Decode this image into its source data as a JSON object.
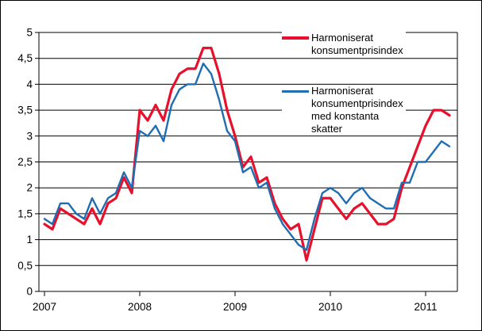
{
  "figure": {
    "background": "#ffffff",
    "border_color": "#000000",
    "axis_color": "#000000"
  },
  "chart_data": {
    "type": "line",
    "title": "",
    "x_unit": "month",
    "x": [
      "2007-01",
      "2007-02",
      "2007-03",
      "2007-04",
      "2007-05",
      "2007-06",
      "2007-07",
      "2007-08",
      "2007-09",
      "2007-10",
      "2007-11",
      "2007-12",
      "2008-01",
      "2008-02",
      "2008-03",
      "2008-04",
      "2008-05",
      "2008-06",
      "2008-07",
      "2008-08",
      "2008-09",
      "2008-10",
      "2008-11",
      "2008-12",
      "2009-01",
      "2009-02",
      "2009-03",
      "2009-04",
      "2009-05",
      "2009-06",
      "2009-07",
      "2009-08",
      "2009-09",
      "2009-10",
      "2009-11",
      "2009-12",
      "2010-01",
      "2010-02",
      "2010-03",
      "2010-04",
      "2010-05",
      "2010-06",
      "2010-07",
      "2010-08",
      "2010-09",
      "2010-10",
      "2010-11",
      "2010-12",
      "2011-01",
      "2011-02",
      "2011-03",
      "2011-04"
    ],
    "series": [
      {
        "name": "Harmoniserat konsumentprisindex",
        "label_lines": [
          "Harmoniserat",
          "konsumentprisindex"
        ],
        "color": "#e8112d",
        "stroke_width": 3.2,
        "values": [
          1.3,
          1.2,
          1.6,
          1.5,
          1.4,
          1.3,
          1.6,
          1.3,
          1.7,
          1.8,
          2.2,
          1.9,
          3.5,
          3.3,
          3.6,
          3.3,
          3.9,
          4.2,
          4.3,
          4.3,
          4.7,
          4.7,
          4.2,
          3.5,
          3.0,
          2.4,
          2.6,
          2.1,
          2.2,
          1.7,
          1.4,
          1.2,
          1.3,
          0.6,
          1.2,
          1.8,
          1.8,
          1.6,
          1.4,
          1.6,
          1.7,
          1.5,
          1.3,
          1.3,
          1.4,
          2.0,
          2.4,
          2.8,
          3.2,
          3.5,
          3.5,
          3.4
        ]
      },
      {
        "name": "Harmoniserat konsumentprisindex med konstanta skatter",
        "label_lines": [
          "Harmoniserat",
          "konsumentprisindex",
          "med konstanta",
          "skatter"
        ],
        "color": "#1f6db2",
        "stroke_width": 2.4,
        "values": [
          1.4,
          1.3,
          1.7,
          1.7,
          1.5,
          1.4,
          1.8,
          1.5,
          1.8,
          1.9,
          2.3,
          2.0,
          3.1,
          3.0,
          3.2,
          2.9,
          3.6,
          3.9,
          4.0,
          4.0,
          4.4,
          4.2,
          3.7,
          3.1,
          2.9,
          2.3,
          2.4,
          2.0,
          2.1,
          1.6,
          1.3,
          1.1,
          0.9,
          0.8,
          1.4,
          1.9,
          2.0,
          1.9,
          1.7,
          1.9,
          2.0,
          1.8,
          1.7,
          1.6,
          1.6,
          2.1,
          2.1,
          2.5,
          2.5,
          2.7,
          2.9,
          2.8
        ]
      }
    ],
    "ylim": [
      0,
      5
    ],
    "y_tick_step": 0.5,
    "y_tick_labels": [
      "0",
      "0,5",
      "1",
      "1,5",
      "2",
      "2,5",
      "3",
      "3,5",
      "4",
      "4,5",
      "5"
    ],
    "x_tick_labels": [
      "2007",
      "2008",
      "2009",
      "2010",
      "2011"
    ],
    "grid": "horizontal-solid-black",
    "legend_position": "inside-top-right"
  }
}
